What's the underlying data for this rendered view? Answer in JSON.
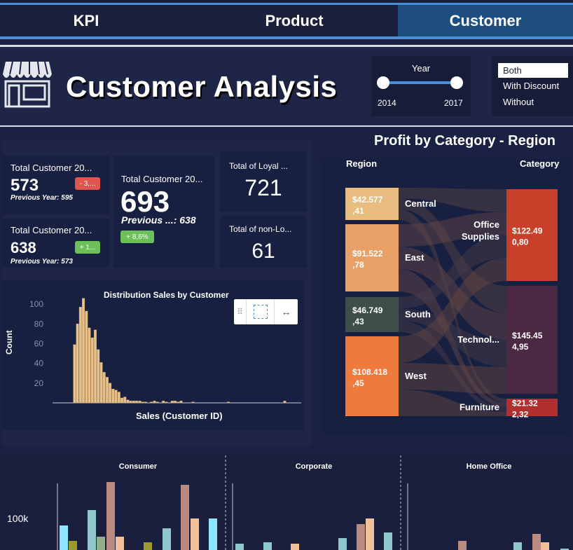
{
  "nav": {
    "tabs": [
      {
        "label": "KPI"
      },
      {
        "label": "Product"
      },
      {
        "label": "Customer"
      }
    ]
  },
  "header": {
    "title": "Customer Analysis",
    "store_icon": "store-icon"
  },
  "year_filter": {
    "label": "Year",
    "min": "2014",
    "max": "2017"
  },
  "segment_filter": {
    "options": [
      "Both",
      "With Discount",
      "Without"
    ],
    "selected": "Both"
  },
  "kpis": {
    "total_a": {
      "label": "Total Customer 20...",
      "value": "573",
      "sub": "Previous Year: 595",
      "badge": "- 3,..."
    },
    "total_b": {
      "label": "Total Customer 20...",
      "value": "638",
      "sub": "Previous Year: 573",
      "badge": "+ 1..."
    },
    "total_main": {
      "label": "Total Customer 20...",
      "value": "693",
      "sub": "Previous ...: 638",
      "badge": "+ 8,6%"
    },
    "loyal": {
      "label": "Total of Loyal ...",
      "value": "721"
    },
    "non_loyal": {
      "label": "Total of non-Lo...",
      "value": "61"
    }
  },
  "colors": {
    "background": "#1b2143",
    "panel": "#182041",
    "accent_blue": "#4a90d9",
    "badge_red": "#e0554e",
    "badge_green": "#6cc05a",
    "hist_bar": "#e8c08a"
  },
  "distribution": {
    "title": "Distribution Sales by Customer",
    "xlabel": "Sales (Customer ID)",
    "ylabel": "Count",
    "toolbar_icons": [
      "drag-handle-icon",
      "select-box-icon",
      "expand-arrows-icon"
    ]
  },
  "chart_data": [
    {
      "type": "bar",
      "title": "Distribution Sales by Customer",
      "xlabel": "Sales (Customer ID)",
      "ylabel": "Count",
      "ylim": [
        0,
        110
      ],
      "yticks": [
        20,
        40,
        60,
        80,
        100
      ],
      "values": [
        0,
        0,
        0,
        0,
        0,
        0,
        0,
        59,
        80,
        97,
        106,
        93,
        76,
        66,
        74,
        54,
        41,
        31,
        26,
        20,
        14,
        13,
        11,
        5,
        6,
        3,
        2,
        2,
        2,
        2,
        1,
        1,
        0,
        1,
        2,
        1,
        0,
        2,
        1,
        0,
        2,
        2,
        1,
        2,
        0,
        0,
        0,
        1,
        0,
        0,
        0,
        0,
        0,
        0,
        0,
        0,
        0,
        0,
        0,
        1,
        0,
        0,
        0,
        0,
        0,
        0,
        0,
        0,
        0,
        0,
        0,
        0,
        0,
        0,
        0,
        0,
        0,
        0,
        2,
        0,
        0,
        0,
        0,
        0
      ]
    },
    {
      "type": "sankey",
      "title": "Profit by Category - Region",
      "left_header": "Region",
      "right_header": "Category",
      "regions": [
        {
          "name": "Central",
          "value": "$42.577,41",
          "color": "#e8bc7e"
        },
        {
          "name": "East",
          "value": "$91.522,78",
          "color": "#e9a066"
        },
        {
          "name": "South",
          "value": "$46.749,43",
          "color": "#3e4e4b"
        },
        {
          "name": "West",
          "value": "$108.418,45",
          "color": "#ee7a3e"
        }
      ],
      "categories": [
        {
          "name": "Office Supplies",
          "value": "$122.490,80",
          "color": "#c9402a"
        },
        {
          "name": "Technol...",
          "value": "$145.454,95",
          "color": "#4c2942"
        },
        {
          "name": "Furniture",
          "value": "$21.322,32",
          "color": "#b02f2f"
        }
      ]
    },
    {
      "type": "bar",
      "title": "",
      "panels": [
        "Consumer",
        "Corporate",
        "Home Office"
      ],
      "ytick_label": "100k"
    }
  ]
}
